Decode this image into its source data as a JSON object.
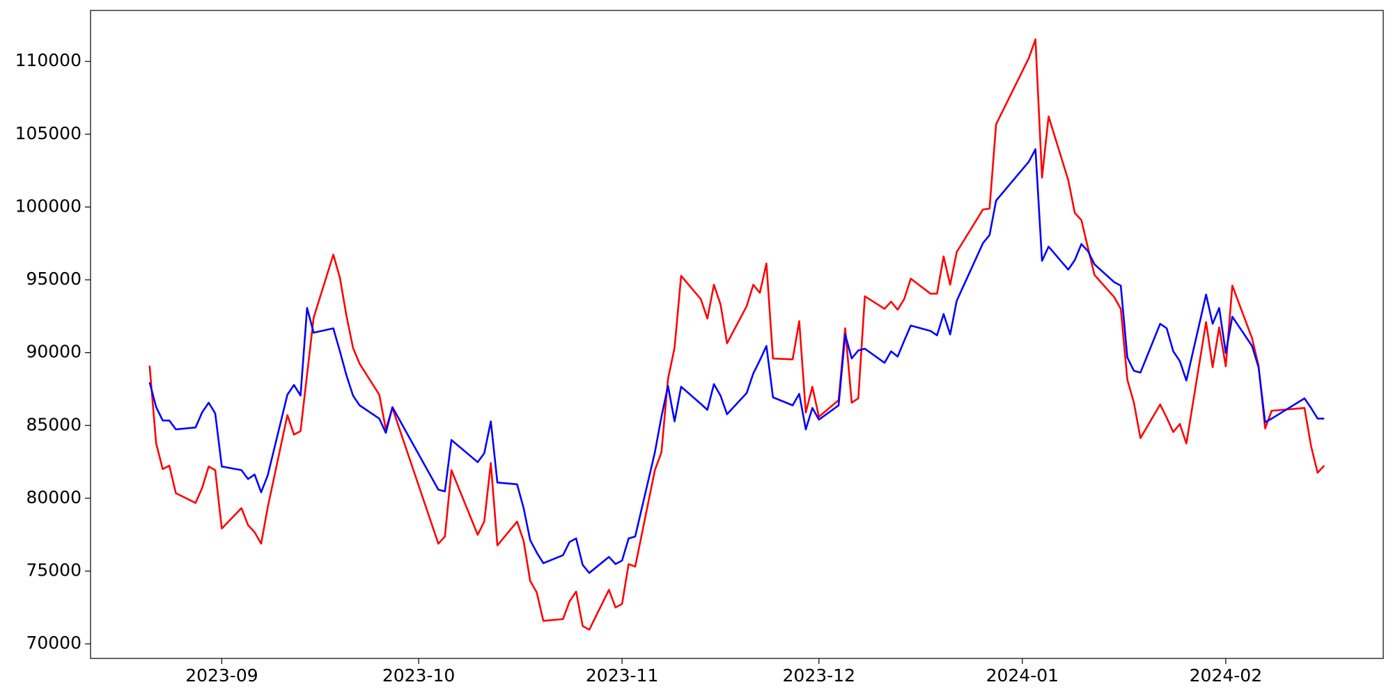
{
  "chart_data": {
    "type": "line",
    "x": [
      -11,
      -10,
      -9,
      -8,
      -7,
      -4,
      -3,
      -2,
      -1,
      0,
      3,
      4,
      5,
      6,
      7,
      10,
      11,
      12,
      13,
      14,
      17,
      18,
      19,
      20,
      21,
      24,
      25,
      26,
      33,
      34,
      35,
      39,
      40,
      41,
      42,
      45,
      46,
      47,
      48,
      49,
      52,
      53,
      54,
      55,
      56,
      59,
      60,
      61,
      62,
      63,
      66,
      67,
      68,
      69,
      70,
      73,
      74,
      75,
      76,
      77,
      80,
      81,
      82,
      83,
      84,
      87,
      88,
      89,
      90,
      91,
      94,
      95,
      96,
      97,
      98,
      101,
      102,
      103,
      104,
      105,
      108,
      109,
      110,
      111,
      112,
      116,
      117,
      118,
      123,
      124,
      125,
      126,
      129,
      130,
      131,
      132,
      133,
      136,
      137,
      138,
      139,
      140,
      143,
      144,
      145,
      146,
      147,
      150,
      151,
      152,
      153,
      154,
      157,
      158,
      159,
      160,
      165,
      166,
      167,
      168
    ],
    "series": [
      {
        "color": "#ff0000",
        "values": [
          89100,
          83760,
          82000,
          82240,
          80350,
          79680,
          80700,
          82180,
          81930,
          77920,
          79320,
          78160,
          77670,
          76880,
          79380,
          85710,
          84370,
          84610,
          88500,
          92400,
          96730,
          95140,
          92530,
          90330,
          89240,
          87110,
          84730,
          86200,
          76880,
          77370,
          81930,
          77490,
          78400,
          82420,
          76760,
          78400,
          77060,
          74320,
          73530,
          71580,
          71700,
          72920,
          73590,
          71220,
          70970,
          73710,
          72500,
          72740,
          75480,
          75300,
          81930,
          83150,
          88200,
          90330,
          95270,
          93680,
          92340,
          94660,
          93320,
          90640,
          93200,
          94660,
          94110,
          96120,
          89600,
          89540,
          92160,
          85890,
          87660,
          85590,
          86740,
          91670,
          86560,
          86860,
          93870,
          93010,
          93500,
          92950,
          93680,
          95080,
          94050,
          94050,
          96610,
          94660,
          96910,
          99830,
          99890,
          105680,
          110240,
          111520,
          102020,
          106220,
          101840,
          99590,
          99100,
          97200,
          95330,
          93810,
          93010,
          88140,
          86560,
          84130,
          86440,
          85530,
          84550,
          85100,
          83760,
          92100,
          89000,
          91740,
          89060,
          94600,
          91000,
          89100,
          84790,
          86010,
          86200,
          83580,
          81750,
          82240
        ]
      },
      {
        "color": "#0000ff",
        "values": [
          87960,
          86260,
          85340,
          85340,
          84730,
          84860,
          85890,
          86560,
          85830,
          82180,
          81930,
          81320,
          81630,
          80410,
          81570,
          87110,
          87780,
          87050,
          93070,
          91370,
          91670,
          90090,
          88440,
          87050,
          86380,
          85470,
          84490,
          86260,
          80590,
          80470,
          84000,
          82480,
          83090,
          85280,
          81080,
          80960,
          79320,
          77120,
          76270,
          75540,
          76090,
          77000,
          77240,
          75420,
          74870,
          75970,
          75480,
          75720,
          77240,
          77370,
          83150,
          85590,
          87720,
          85280,
          87660,
          86480,
          86070,
          87840,
          87050,
          85770,
          87230,
          88570,
          89480,
          90460,
          86930,
          86380,
          87170,
          84730,
          86200,
          85400,
          86380,
          91250,
          89600,
          90150,
          90270,
          89300,
          90090,
          89730,
          90820,
          91860,
          91490,
          91190,
          92650,
          91250,
          93560,
          97520,
          98070,
          100440,
          103120,
          103970,
          96300,
          97280,
          95700,
          96360,
          97460,
          96970,
          96060,
          94840,
          94600,
          89670,
          88750,
          88630,
          91980,
          91670,
          90090,
          89420,
          88080,
          93990,
          91980,
          93070,
          89970,
          92470,
          90460,
          89000,
          85220,
          85470,
          86860,
          86200,
          85470,
          85470
        ]
      }
    ],
    "xlim": [
      -20,
      177
    ],
    "xticks": [
      {
        "value": 0,
        "label": "2023-09"
      },
      {
        "value": 30,
        "label": "2023-10"
      },
      {
        "value": 61,
        "label": "2023-11"
      },
      {
        "value": 91,
        "label": "2023-12"
      },
      {
        "value": 122,
        "label": "2024-01"
      },
      {
        "value": 153,
        "label": "2024-02"
      }
    ],
    "ylim": [
      69000,
      113500
    ],
    "yticks": [
      70000,
      75000,
      80000,
      85000,
      90000,
      95000,
      100000,
      105000,
      110000
    ],
    "grid": false
  }
}
